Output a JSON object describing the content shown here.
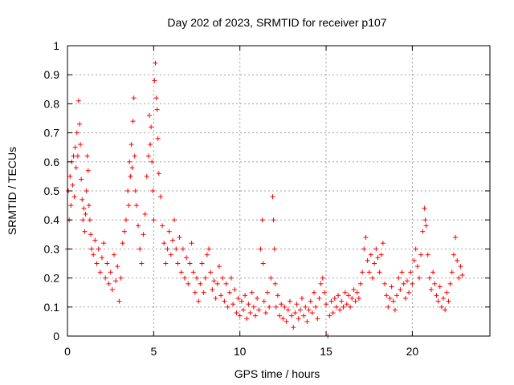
{
  "chart_data": {
    "type": "scatter",
    "title": "Day 202 of 2023, SRMTID for receiver p107",
    "xlabel": "GPS time / hours",
    "ylabel": "SRMTID / TECUs",
    "xlim": [
      0,
      24.5
    ],
    "ylim": [
      0,
      1
    ],
    "xticks": [
      0,
      5,
      10,
      15,
      20
    ],
    "xtick_labels": [
      "0",
      "5",
      "10",
      "15",
      "20"
    ],
    "yticks": [
      0,
      0.1,
      0.2,
      0.3,
      0.4,
      0.5,
      0.6,
      0.7,
      0.8,
      0.9,
      1
    ],
    "ytick_labels": [
      "0",
      "0.1",
      "0.2",
      "0.3",
      "0.4",
      "0.5",
      "0.6",
      "0.7",
      "0.8",
      "0.9",
      "1"
    ],
    "grid": true,
    "marker": "+",
    "marker_color": "#ff0000",
    "series": [
      {
        "name": "SRMTID",
        "points": [
          [
            0.0,
            0.3
          ],
          [
            0.05,
            0.5
          ],
          [
            0.1,
            0.4
          ],
          [
            0.15,
            0.55
          ],
          [
            0.2,
            0.45
          ],
          [
            0.25,
            0.6
          ],
          [
            0.3,
            0.52
          ],
          [
            0.35,
            0.62
          ],
          [
            0.4,
            0.48
          ],
          [
            0.45,
            0.65
          ],
          [
            0.5,
            0.58
          ],
          [
            0.55,
            0.7
          ],
          [
            0.6,
            0.62
          ],
          [
            0.65,
            0.81
          ],
          [
            0.7,
            0.73
          ],
          [
            0.75,
            0.66
          ],
          [
            0.8,
            0.54
          ],
          [
            0.85,
            0.47
          ],
          [
            0.9,
            0.4
          ],
          [
            0.95,
            0.44
          ],
          [
            1.0,
            0.36
          ],
          [
            1.05,
            0.42
          ],
          [
            1.1,
            0.5
          ],
          [
            1.15,
            0.62
          ],
          [
            1.2,
            0.57
          ],
          [
            1.25,
            0.45
          ],
          [
            1.3,
            0.4
          ],
          [
            1.35,
            0.35
          ],
          [
            1.4,
            0.3
          ],
          [
            1.5,
            0.28
          ],
          [
            1.6,
            0.33
          ],
          [
            1.7,
            0.25
          ],
          [
            1.8,
            0.3
          ],
          [
            1.9,
            0.22
          ],
          [
            2.0,
            0.27
          ],
          [
            2.1,
            0.32
          ],
          [
            2.2,
            0.2
          ],
          [
            2.3,
            0.25
          ],
          [
            2.4,
            0.18
          ],
          [
            2.5,
            0.22
          ],
          [
            2.6,
            0.16
          ],
          [
            2.7,
            0.28
          ],
          [
            2.8,
            0.19
          ],
          [
            2.9,
            0.24
          ],
          [
            3.0,
            0.12
          ],
          [
            3.1,
            0.2
          ],
          [
            3.2,
            0.32
          ],
          [
            3.3,
            0.36
          ],
          [
            3.4,
            0.4
          ],
          [
            3.5,
            0.5
          ],
          [
            3.55,
            0.45
          ],
          [
            3.6,
            0.6
          ],
          [
            3.65,
            0.55
          ],
          [
            3.7,
            0.66
          ],
          [
            3.75,
            0.58
          ],
          [
            3.8,
            0.74
          ],
          [
            3.85,
            0.82
          ],
          [
            3.9,
            0.62
          ],
          [
            3.95,
            0.5
          ],
          [
            4.0,
            0.45
          ],
          [
            4.1,
            0.38
          ],
          [
            4.2,
            0.3
          ],
          [
            4.3,
            0.25
          ],
          [
            4.4,
            0.35
          ],
          [
            4.5,
            0.42
          ],
          [
            4.6,
            0.55
          ],
          [
            4.7,
            0.62
          ],
          [
            4.75,
            0.76
          ],
          [
            4.8,
            0.66
          ],
          [
            4.85,
            0.72
          ],
          [
            4.9,
            0.6
          ],
          [
            4.95,
            0.5
          ],
          [
            5.0,
            0.4
          ],
          [
            5.05,
            0.88
          ],
          [
            5.1,
            0.94
          ],
          [
            5.15,
            0.82
          ],
          [
            5.2,
            0.78
          ],
          [
            5.25,
            0.68
          ],
          [
            5.3,
            0.56
          ],
          [
            5.4,
            0.48
          ],
          [
            5.5,
            0.38
          ],
          [
            5.6,
            0.32
          ],
          [
            5.7,
            0.25
          ],
          [
            5.8,
            0.3
          ],
          [
            5.9,
            0.36
          ],
          [
            6.0,
            0.28
          ],
          [
            6.1,
            0.33
          ],
          [
            6.2,
            0.4
          ],
          [
            6.3,
            0.3
          ],
          [
            6.4,
            0.25
          ],
          [
            6.5,
            0.34
          ],
          [
            6.6,
            0.22
          ],
          [
            6.7,
            0.3
          ],
          [
            6.8,
            0.2
          ],
          [
            6.9,
            0.27
          ],
          [
            7.0,
            0.18
          ],
          [
            7.1,
            0.25
          ],
          [
            7.2,
            0.32
          ],
          [
            7.3,
            0.22
          ],
          [
            7.4,
            0.15
          ],
          [
            7.5,
            0.2
          ],
          [
            7.6,
            0.12
          ],
          [
            7.7,
            0.18
          ],
          [
            7.8,
            0.25
          ],
          [
            7.9,
            0.15
          ],
          [
            8.0,
            0.2
          ],
          [
            8.1,
            0.28
          ],
          [
            8.2,
            0.3
          ],
          [
            8.3,
            0.22
          ],
          [
            8.4,
            0.16
          ],
          [
            8.5,
            0.19
          ],
          [
            8.6,
            0.13
          ],
          [
            8.7,
            0.18
          ],
          [
            8.8,
            0.24
          ],
          [
            8.9,
            0.14
          ],
          [
            9.0,
            0.2
          ],
          [
            9.1,
            0.12
          ],
          [
            9.2,
            0.18
          ],
          [
            9.3,
            0.1
          ],
          [
            9.4,
            0.15
          ],
          [
            9.5,
            0.2
          ],
          [
            9.6,
            0.11
          ],
          [
            9.7,
            0.16
          ],
          [
            9.8,
            0.08
          ],
          [
            9.9,
            0.13
          ],
          [
            10.0,
            0.07
          ],
          [
            10.1,
            0.12
          ],
          [
            10.2,
            0.09
          ],
          [
            10.3,
            0.14
          ],
          [
            10.4,
            0.06
          ],
          [
            10.5,
            0.11
          ],
          [
            10.6,
            0.08
          ],
          [
            10.7,
            0.15
          ],
          [
            10.8,
            0.1
          ],
          [
            10.9,
            0.07
          ],
          [
            11.0,
            0.13
          ],
          [
            11.1,
            0.09
          ],
          [
            11.2,
            0.3
          ],
          [
            11.3,
            0.4
          ],
          [
            11.35,
            0.25
          ],
          [
            11.4,
            0.12
          ],
          [
            11.5,
            0.08
          ],
          [
            11.6,
            0.15
          ],
          [
            11.7,
            0.1
          ],
          [
            11.8,
            0.2
          ],
          [
            11.9,
            0.48
          ],
          [
            11.95,
            0.4
          ],
          [
            12.0,
            0.3
          ],
          [
            12.05,
            0.18
          ],
          [
            12.1,
            0.1
          ],
          [
            12.2,
            0.14
          ],
          [
            12.3,
            0.07
          ],
          [
            12.4,
            0.11
          ],
          [
            12.5,
            0.06
          ],
          [
            12.6,
            0.1
          ],
          [
            12.7,
            0.05
          ],
          [
            12.8,
            0.09
          ],
          [
            12.9,
            0.12
          ],
          [
            13.0,
            0.07
          ],
          [
            13.1,
            0.03
          ],
          [
            13.2,
            0.08
          ],
          [
            13.3,
            0.11
          ],
          [
            13.4,
            0.06
          ],
          [
            13.5,
            0.09
          ],
          [
            13.6,
            0.13
          ],
          [
            13.7,
            0.07
          ],
          [
            13.8,
            0.1
          ],
          [
            13.9,
            0.05
          ],
          [
            14.0,
            0.09
          ],
          [
            14.1,
            0.12
          ],
          [
            14.2,
            0.08
          ],
          [
            14.3,
            0.15
          ],
          [
            14.4,
            0.1
          ],
          [
            14.5,
            0.06
          ],
          [
            14.6,
            0.13
          ],
          [
            14.7,
            0.18
          ],
          [
            14.8,
            0.2
          ],
          [
            14.9,
            0.15
          ],
          [
            15.0,
            0.11
          ],
          [
            15.1,
            0.0
          ],
          [
            15.2,
            0.07
          ],
          [
            15.3,
            0.12
          ],
          [
            15.4,
            0.08
          ],
          [
            15.5,
            0.13
          ],
          [
            15.6,
            0.1
          ],
          [
            15.7,
            0.14
          ],
          [
            15.8,
            0.09
          ],
          [
            15.9,
            0.12
          ],
          [
            16.0,
            0.1
          ],
          [
            16.1,
            0.15
          ],
          [
            16.2,
            0.11
          ],
          [
            16.3,
            0.14
          ],
          [
            16.4,
            0.1
          ],
          [
            16.5,
            0.13
          ],
          [
            16.6,
            0.16
          ],
          [
            16.7,
            0.12
          ],
          [
            16.8,
            0.15
          ],
          [
            16.9,
            0.13
          ],
          [
            17.0,
            0.18
          ],
          [
            17.1,
            0.22
          ],
          [
            17.2,
            0.3
          ],
          [
            17.3,
            0.34
          ],
          [
            17.4,
            0.26
          ],
          [
            17.5,
            0.22
          ],
          [
            17.6,
            0.28
          ],
          [
            17.7,
            0.2
          ],
          [
            17.8,
            0.25
          ],
          [
            17.9,
            0.3
          ],
          [
            18.0,
            0.27
          ],
          [
            18.1,
            0.22
          ],
          [
            18.2,
            0.28
          ],
          [
            18.3,
            0.32
          ],
          [
            18.4,
            0.18
          ],
          [
            18.5,
            0.14
          ],
          [
            18.6,
            0.1
          ],
          [
            18.7,
            0.13
          ],
          [
            18.8,
            0.17
          ],
          [
            18.9,
            0.12
          ],
          [
            19.0,
            0.09
          ],
          [
            19.1,
            0.14
          ],
          [
            19.2,
            0.2
          ],
          [
            19.3,
            0.16
          ],
          [
            19.4,
            0.22
          ],
          [
            19.5,
            0.18
          ],
          [
            19.6,
            0.13
          ],
          [
            19.7,
            0.19
          ],
          [
            19.8,
            0.15
          ],
          [
            19.9,
            0.22
          ],
          [
            20.0,
            0.18
          ],
          [
            20.1,
            0.26
          ],
          [
            20.2,
            0.3
          ],
          [
            20.3,
            0.24
          ],
          [
            20.4,
            0.2
          ],
          [
            20.5,
            0.28
          ],
          [
            20.6,
            0.36
          ],
          [
            20.7,
            0.44
          ],
          [
            20.75,
            0.4
          ],
          [
            20.8,
            0.38
          ],
          [
            20.9,
            0.28
          ],
          [
            21.0,
            0.2
          ],
          [
            21.1,
            0.16
          ],
          [
            21.2,
            0.22
          ],
          [
            21.3,
            0.18
          ],
          [
            21.4,
            0.14
          ],
          [
            21.5,
            0.12
          ],
          [
            21.6,
            0.17
          ],
          [
            21.7,
            0.1
          ],
          [
            21.8,
            0.13
          ],
          [
            21.9,
            0.09
          ],
          [
            22.0,
            0.15
          ],
          [
            22.1,
            0.12
          ],
          [
            22.2,
            0.18
          ],
          [
            22.3,
            0.22
          ],
          [
            22.4,
            0.28
          ],
          [
            22.5,
            0.34
          ],
          [
            22.6,
            0.26
          ],
          [
            22.7,
            0.2
          ],
          [
            22.8,
            0.24
          ],
          [
            22.9,
            0.21
          ]
        ]
      }
    ]
  }
}
